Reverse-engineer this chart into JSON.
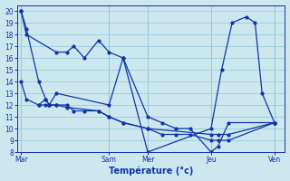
{
  "xlabel": "Température (°c)",
  "background_color": "#cce8ee",
  "grid_color": "#99ccdd",
  "line_color": "#1133aa",
  "ylim": [
    8,
    20.5
  ],
  "yticks": [
    8,
    9,
    10,
    11,
    12,
    13,
    14,
    15,
    16,
    17,
    18,
    19,
    20
  ],
  "xtick_labels": [
    "Mar",
    "Sam",
    "Mer",
    "Jeu",
    "Ven"
  ],
  "xtick_positions": [
    0,
    50,
    72,
    108,
    144
  ],
  "xlim": [
    -2,
    150
  ],
  "series1_x": [
    0,
    3,
    10,
    14,
    16,
    20,
    50,
    58,
    72,
    80,
    88,
    96,
    108,
    112,
    118,
    144
  ],
  "series1_y": [
    20,
    18.5,
    14,
    12.5,
    12,
    13,
    12,
    16,
    11,
    10.5,
    10,
    10,
    8,
    8.5,
    10.5,
    10.5
  ],
  "series2_x": [
    0,
    3,
    20,
    26,
    30,
    36,
    44,
    50,
    58,
    72,
    108,
    114,
    120,
    128,
    133,
    137,
    144
  ],
  "series2_y": [
    20,
    18,
    16.5,
    16.5,
    17,
    16,
    17.5,
    16.5,
    16,
    8,
    10,
    15,
    19,
    19.5,
    19,
    13,
    10.5
  ],
  "series3_x": [
    10,
    14,
    16,
    20,
    26,
    30,
    36,
    44,
    50,
    58,
    72,
    80,
    88,
    96,
    108,
    112,
    118,
    144
  ],
  "series3_y": [
    12,
    12.5,
    12,
    12,
    12,
    11.5,
    11.5,
    11.5,
    11,
    10.5,
    10,
    9.5,
    9.5,
    9.5,
    9,
    9,
    9,
    10.5
  ],
  "series4_x": [
    0,
    3,
    10,
    14,
    16,
    20,
    26,
    44,
    50,
    58,
    72,
    108,
    112,
    118,
    144
  ],
  "series4_y": [
    14,
    12.5,
    12,
    12,
    12,
    12,
    11.8,
    11.5,
    11,
    10.5,
    10,
    9.5,
    9.5,
    9.5,
    10.5
  ]
}
